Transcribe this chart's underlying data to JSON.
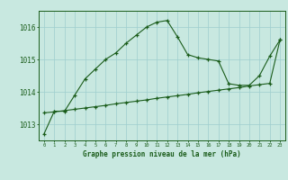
{
  "hours": [
    0,
    1,
    2,
    3,
    4,
    5,
    6,
    7,
    8,
    9,
    10,
    11,
    12,
    13,
    14,
    15,
    16,
    17,
    18,
    19,
    20,
    21,
    22,
    23
  ],
  "line1": [
    1012.7,
    1013.4,
    1013.4,
    1013.9,
    1014.4,
    1014.7,
    1015.0,
    1015.2,
    1015.5,
    1015.75,
    1016.0,
    1016.15,
    1016.2,
    1015.7,
    1015.15,
    1015.05,
    1015.0,
    1014.95,
    1014.25,
    1014.2,
    1014.2,
    1014.5,
    1015.1,
    1015.6
  ],
  "line2": [
    1013.35,
    1013.38,
    1013.42,
    1013.46,
    1013.5,
    1013.54,
    1013.58,
    1013.63,
    1013.67,
    1013.71,
    1013.75,
    1013.8,
    1013.84,
    1013.88,
    1013.92,
    1013.97,
    1014.01,
    1014.05,
    1014.09,
    1014.13,
    1014.18,
    1014.22,
    1014.26,
    1015.6
  ],
  "line_color": "#1a5c1a",
  "bg_color": "#c8e8e0",
  "grid_color": "#9ecece",
  "ylim_min": 1012.5,
  "ylim_max": 1016.5,
  "yticks": [
    1013,
    1014,
    1015,
    1016
  ],
  "xlabel": "Graphe pression niveau de la mer (hPa)",
  "fig_bg": "#c8e8e0"
}
